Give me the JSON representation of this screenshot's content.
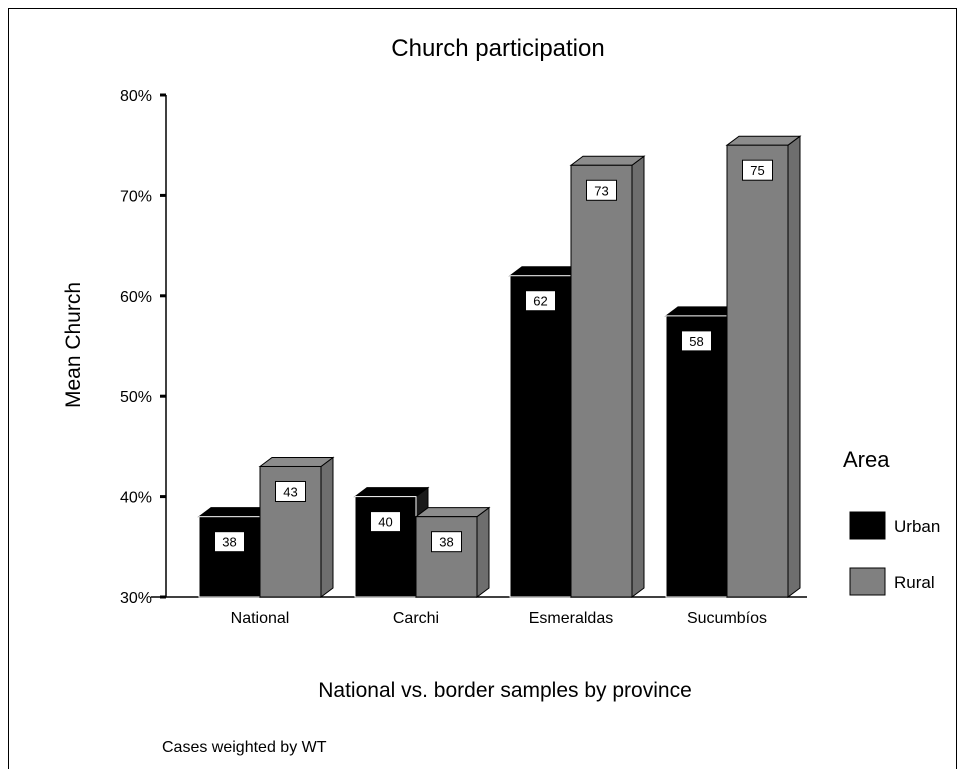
{
  "chart_data": {
    "type": "bar",
    "title": "Church participation",
    "xlabel": "National vs. border samples by province",
    "ylabel": "Mean Church",
    "categories": [
      "National",
      "Carchi",
      "Esmeraldas",
      "Sucumbíos"
    ],
    "series": [
      {
        "name": "Urban",
        "values": [
          38,
          40,
          62,
          58
        ],
        "color": "#000000"
      },
      {
        "name": "Rural",
        "values": [
          43,
          38,
          73,
          75
        ],
        "color": "#808080"
      }
    ],
    "ylim": [
      30,
      80
    ],
    "yticks": [
      30,
      40,
      50,
      60,
      70,
      80
    ],
    "ytick_labels": [
      "30%",
      "40%",
      "50%",
      "60%",
      "70%",
      "80%"
    ],
    "legend": {
      "title": "Area",
      "position": "right"
    },
    "grid": false,
    "style": "3d-bar"
  },
  "footnote": "Cases weighted by WT"
}
